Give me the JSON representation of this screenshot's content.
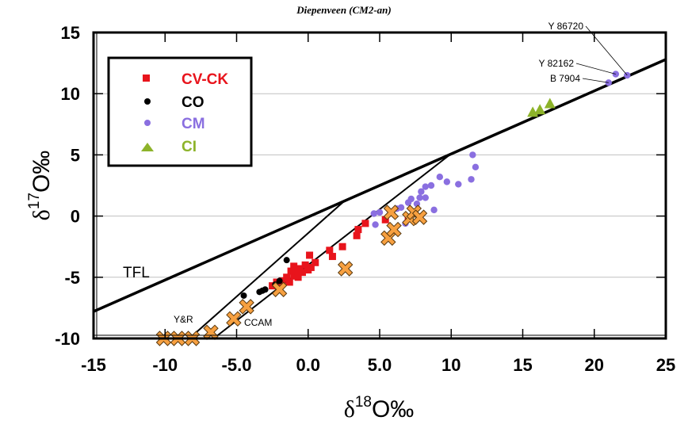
{
  "chart_data": {
    "type": "scatter",
    "title": "Diepenveen (CM2-an)",
    "xlabel": "δ18O‰",
    "xlabel_parts": {
      "delta": "δ",
      "sup": "18",
      "rest": "O‰"
    },
    "ylabel": "δ17O‰",
    "ylabel_parts": {
      "delta": "δ",
      "sup": "17",
      "rest": "O‰"
    },
    "xlim": [
      -15,
      25
    ],
    "ylim": [
      -10,
      15
    ],
    "x_ticks": [
      -15,
      -10,
      -5,
      0,
      5,
      10,
      15,
      20,
      25
    ],
    "x_tick_labels": [
      "-15",
      "-10",
      "-5.0",
      "0.0",
      "5.0",
      "10",
      "15",
      "20",
      "25"
    ],
    "y_ticks": [
      -10,
      -5,
      0,
      5,
      10,
      15
    ],
    "y_tick_labels": [
      "-10",
      "-5",
      "0",
      "5",
      "10",
      "15"
    ],
    "grid": "horizontal",
    "legend_position": "top-left",
    "series": [
      {
        "name": "CV-CK",
        "marker": "square",
        "color": "#e8141c",
        "points": [
          [
            -2.5,
            -5.7
          ],
          [
            -2.2,
            -5.4
          ],
          [
            -1.8,
            -5.3
          ],
          [
            -1.5,
            -5.0
          ],
          [
            -1.3,
            -5.4
          ],
          [
            -1.0,
            -4.9
          ],
          [
            -0.8,
            -4.6
          ],
          [
            -0.6,
            -4.3
          ],
          [
            -0.4,
            -4.6
          ],
          [
            -0.2,
            -4.0
          ],
          [
            0.0,
            -4.4
          ],
          [
            0.2,
            -4.2
          ],
          [
            0.5,
            -3.8
          ],
          [
            0.1,
            -3.2
          ],
          [
            -1.0,
            -4.1
          ],
          [
            -1.2,
            -4.5
          ],
          [
            -0.7,
            -5.0
          ],
          [
            1.5,
            -2.8
          ],
          [
            1.7,
            -3.3
          ],
          [
            2.4,
            -2.5
          ],
          [
            3.4,
            -1.6
          ],
          [
            3.5,
            -1.1
          ],
          [
            4.0,
            -0.6
          ],
          [
            5.4,
            -0.3
          ],
          [
            7.0,
            -0.1
          ]
        ]
      },
      {
        "name": "CO",
        "marker": "circle",
        "color": "#000000",
        "points": [
          [
            -4.5,
            -6.5
          ],
          [
            -3.4,
            -6.2
          ],
          [
            -3.2,
            -6.1
          ],
          [
            -3.0,
            -6.0
          ],
          [
            -2.3,
            -5.6
          ],
          [
            -2.0,
            -5.3
          ],
          [
            -1.5,
            -3.6
          ]
        ]
      },
      {
        "name": "CM",
        "marker": "circle",
        "color": "#8a6fe0",
        "points": [
          [
            4.6,
            0.2
          ],
          [
            5.0,
            0.3
          ],
          [
            4.7,
            -0.7
          ],
          [
            6.2,
            0.6
          ],
          [
            6.5,
            0.7
          ],
          [
            7.0,
            1.1
          ],
          [
            7.2,
            1.4
          ],
          [
            7.6,
            1.0
          ],
          [
            7.8,
            1.5
          ],
          [
            6.8,
            -0.6
          ],
          [
            7.9,
            2.0
          ],
          [
            8.2,
            2.4
          ],
          [
            8.2,
            1.5
          ],
          [
            8.6,
            2.5
          ],
          [
            8.8,
            0.5
          ],
          [
            9.2,
            3.2
          ],
          [
            9.7,
            2.8
          ],
          [
            10.5,
            2.6
          ],
          [
            11.4,
            3.0
          ],
          [
            11.7,
            4.0
          ],
          [
            11.5,
            5.0
          ],
          [
            21.0,
            10.9
          ],
          [
            21.5,
            11.6
          ],
          [
            22.3,
            11.5
          ]
        ]
      },
      {
        "name": "CI",
        "marker": "triangle",
        "color": "#8db32a",
        "points": [
          [
            15.7,
            8.5
          ],
          [
            16.2,
            8.7
          ],
          [
            16.9,
            9.2
          ]
        ]
      },
      {
        "name": "Samples",
        "marker": "x",
        "color": "#f7a040",
        "in_legend": false,
        "points": [
          [
            -10.1,
            -10.0
          ],
          [
            -9.1,
            -10.0
          ],
          [
            -8.1,
            -10.0
          ],
          [
            -6.8,
            -9.5
          ],
          [
            -5.2,
            -8.4
          ],
          [
            -4.3,
            -7.4
          ],
          [
            -2.0,
            -6.0
          ],
          [
            2.6,
            -4.3
          ],
          [
            5.6,
            -1.8
          ],
          [
            6.0,
            -1.1
          ],
          [
            5.8,
            0.3
          ],
          [
            7.1,
            -0.2
          ],
          [
            7.4,
            0.3
          ],
          [
            7.8,
            -0.1
          ]
        ]
      }
    ],
    "lines": [
      {
        "name": "TFL",
        "label": "TFL",
        "points": [
          [
            -15,
            -7.8
          ],
          [
            25,
            12.8
          ]
        ],
        "weight": "thick"
      },
      {
        "name": "Y&R",
        "label": "Y&R",
        "points": [
          [
            -8.3,
            -10.0
          ],
          [
            2.5,
            1.2
          ]
        ],
        "weight": "thin"
      },
      {
        "name": "CCAM",
        "label": "CCAM",
        "points": [
          [
            -6.6,
            -10.0
          ],
          [
            10.0,
            5.1
          ]
        ],
        "weight": "thin"
      }
    ],
    "annotations": [
      {
        "text": "Y 86720",
        "target": [
          22.3,
          11.5
        ]
      },
      {
        "text": "Y 82162",
        "target": [
          21.5,
          11.6
        ]
      },
      {
        "text": "B 7904",
        "target": [
          21.0,
          10.9
        ]
      }
    ]
  }
}
